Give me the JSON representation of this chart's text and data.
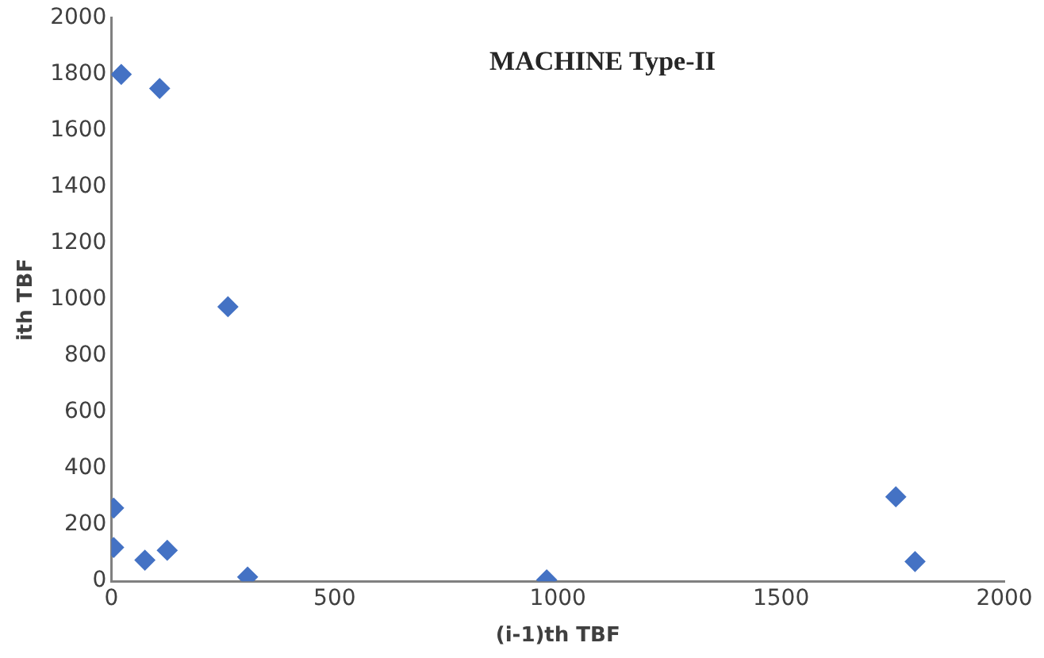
{
  "chart_data": {
    "type": "scatter",
    "title": "MACHINE Type-II",
    "xlabel": "(i-1)th TBF",
    "ylabel": "ith TBF",
    "x": [
      22,
      108,
      261,
      5,
      5,
      75,
      125,
      305,
      975,
      1757,
      1800
    ],
    "series": [
      {
        "color": "#4472c4",
        "values": [
          1800,
          1750,
          975,
          260,
          120,
          75,
          110,
          15,
          5,
          300,
          70
        ]
      }
    ],
    "xlim": [
      0,
      2000
    ],
    "xticks": [
      0,
      500,
      1000,
      1500,
      2000
    ],
    "ylim": [
      0,
      2000
    ],
    "yticks": [
      0,
      200,
      400,
      600,
      800,
      1000,
      1200,
      1400,
      1600,
      1800,
      2000
    ],
    "marker": "diamond",
    "grid": false,
    "legend": false
  }
}
